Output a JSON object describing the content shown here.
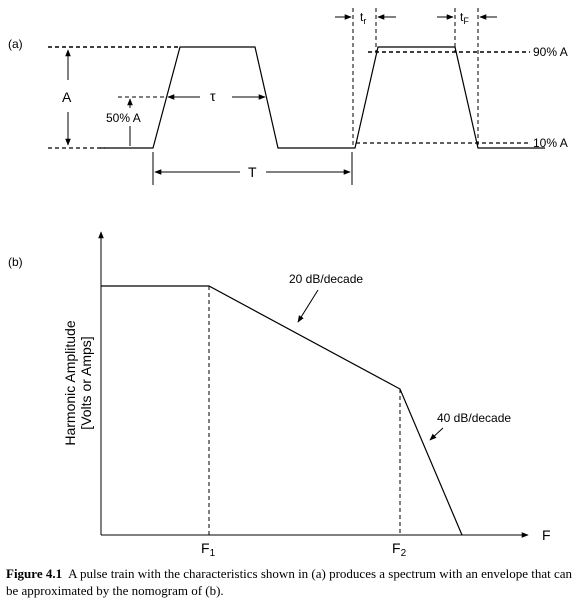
{
  "panel_a": {
    "label": "(a)",
    "amplitude": "A",
    "half_amplitude": "50% A",
    "pulse_width": "τ",
    "period": "T",
    "rise_time": "t",
    "rise_time_sub": "r",
    "fall_time": "t",
    "fall_time_sub": "F",
    "level_90": "90% A",
    "level_10": "10% A"
  },
  "panel_b": {
    "label": "(b)",
    "y_label_line1": "Harmonic Amplitude",
    "y_label_line2": "[Volts or Amps]",
    "x_label": "F",
    "f1": "F",
    "f1_sub": "1",
    "f2": "F",
    "f2_sub": "2",
    "slope1": "20 dB/decade",
    "slope2": "40 dB/decade"
  },
  "caption": {
    "tag": "Figure 4.1",
    "text": "A pulse train with the characteristics shown in (a) produces a spectrum with an envelope that can be approximated by the nomogram of (b)."
  }
}
